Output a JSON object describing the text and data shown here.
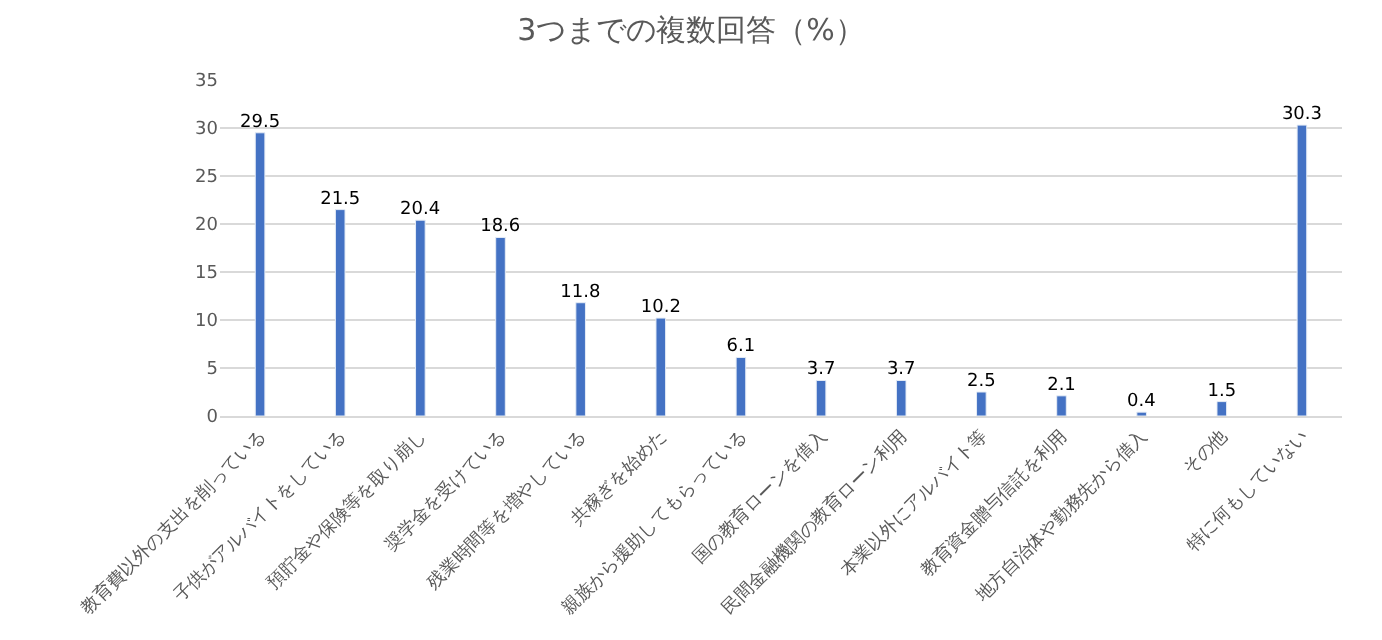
{
  "chart_data": {
    "type": "bar",
    "title": "3つまでの複数回答（%）",
    "categories": [
      "教育費以外の支出を削っている",
      "子供がアルバイトをしている",
      "預貯金や保険等を取り崩し",
      "奨学金を受けている",
      "残業時間等を増やしている",
      "共稼ぎを始めた",
      "親族から援助してもらっている",
      "国の教育ローンを借入",
      "民間金融機関の教育ローン利用",
      "本業以外にアルバイト等",
      "教育資金贈与信託を利用",
      "地方自治体や勤務先から借入",
      "その他",
      "特に何もしていない"
    ],
    "values": [
      29.5,
      21.5,
      20.4,
      18.6,
      11.8,
      10.2,
      6.1,
      3.7,
      3.7,
      2.5,
      2.1,
      0.4,
      1.5,
      30.3
    ],
    "color": "#4472c4",
    "data_labels": true,
    "ylim": [
      0,
      35
    ],
    "yticks": [
      0,
      5,
      10,
      15,
      20,
      25,
      30,
      35
    ],
    "grid": "y",
    "legend": false
  }
}
